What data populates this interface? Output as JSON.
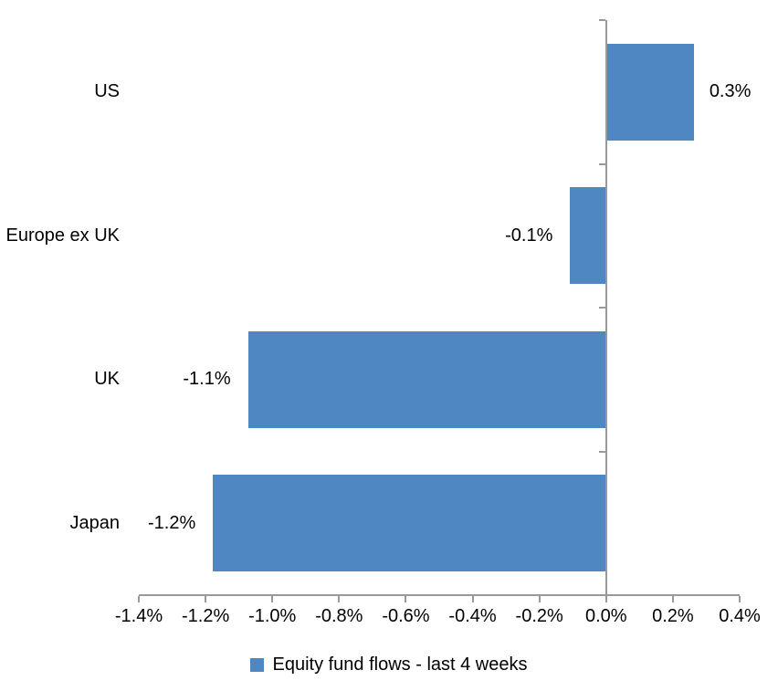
{
  "chart_data": {
    "type": "bar",
    "orientation": "horizontal",
    "title": "",
    "xlabel": "",
    "ylabel": "",
    "categories": [
      "US",
      "Europe ex UK",
      "UK",
      "Japan"
    ],
    "series": [
      {
        "name": "Equity fund flows - last 4 weeks",
        "values": [
          0.3,
          -0.1,
          -1.1,
          -1.2
        ],
        "plot_values": [
          0.26,
          -0.105,
          -1.07,
          -1.175
        ],
        "data_labels": [
          "0.3%",
          "-0.1%",
          "-1.1%",
          "-1.2%"
        ]
      }
    ],
    "xlim": [
      -1.4,
      0.4
    ],
    "x_ticks": [
      {
        "value": -1.4,
        "label": "-1.4%"
      },
      {
        "value": -1.2,
        "label": "-1.2%"
      },
      {
        "value": -1.0,
        "label": "-1.0%"
      },
      {
        "value": -0.8,
        "label": "-0.8%"
      },
      {
        "value": -0.6,
        "label": "-0.6%"
      },
      {
        "value": -0.4,
        "label": "-0.4%"
      },
      {
        "value": -0.2,
        "label": "-0.2%"
      },
      {
        "value": 0.0,
        "label": "0.0%"
      },
      {
        "value": 0.2,
        "label": "0.2%"
      },
      {
        "value": 0.4,
        "label": "0.4%"
      }
    ],
    "grid": false,
    "legend": {
      "label": "Equity fund flows - last 4 weeks",
      "position": "bottom"
    },
    "colors": {
      "bar": "#4E87C1",
      "axis": "#999999",
      "text": "#000000",
      "background": "#FFFFFF"
    }
  }
}
